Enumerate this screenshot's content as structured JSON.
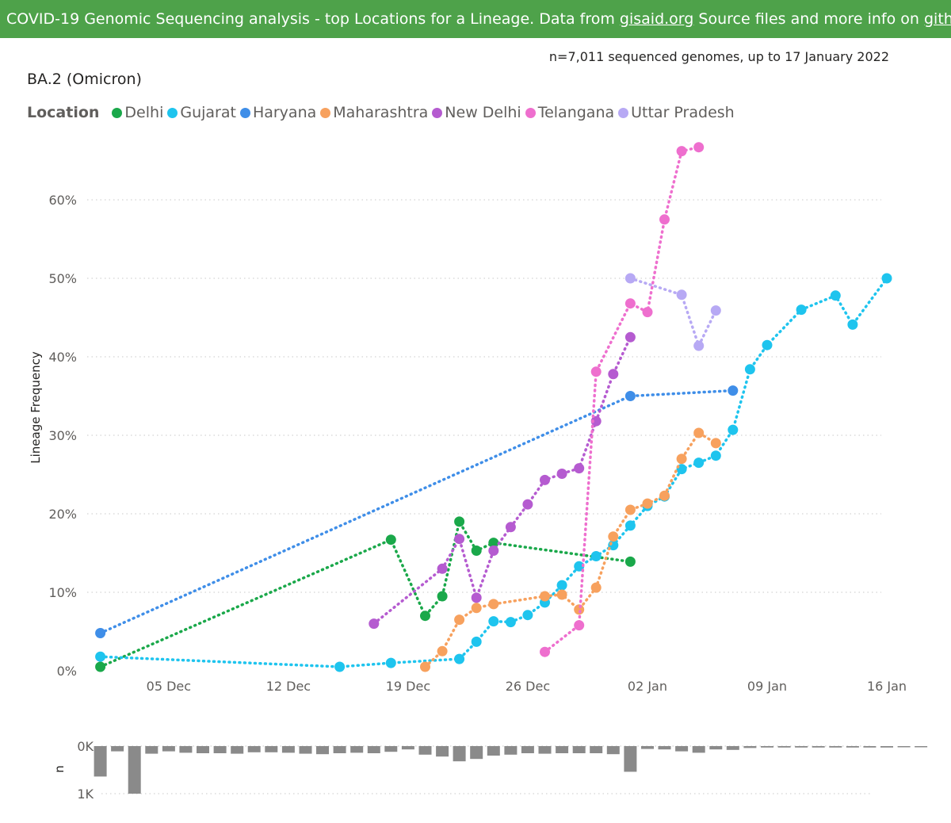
{
  "banner": {
    "text_before": "COVID-19 Genomic Sequencing analysis - top Locations for a Lineage. Data from ",
    "link1": "gisaid.org",
    "text_middle": " Source files and more info on ",
    "link2": "github",
    "text_after": "."
  },
  "subtitle": "n=7,011 sequenced genomes, up to 17 January 2022",
  "chart_data": [
    {
      "type": "line",
      "title": "BA.2 (Omicron)",
      "ylabel": "Lineage Frequency",
      "xlabel": "",
      "legend_title": "Location",
      "legend_position": "top-left",
      "x_axis_type": "date",
      "xlim": [
        "2021-11-30",
        "2022-01-16"
      ],
      "ylim": [
        0,
        0.68
      ],
      "yticks": [
        0,
        0.1,
        0.2,
        0.3,
        0.4,
        0.5,
        0.6
      ],
      "ytick_labels": [
        "0%",
        "10%",
        "20%",
        "30%",
        "40%",
        "50%",
        "60%"
      ],
      "xticks": [
        "2021-12-05",
        "2021-12-12",
        "2021-12-19",
        "2021-12-26",
        "2022-01-02",
        "2022-01-09",
        "2022-01-16"
      ],
      "xtick_labels": [
        "05 Dec",
        "12 Dec",
        "19 Dec",
        "26 Dec",
        "02 Jan",
        "09 Jan",
        "16 Jan"
      ],
      "grid": true,
      "series": [
        {
          "name": "Delhi",
          "color": "#1aa84a",
          "points": [
            [
              "2021-12-01",
              0.005
            ],
            [
              "2021-12-18",
              0.167
            ],
            [
              "2021-12-20",
              0.07
            ],
            [
              "2021-12-21",
              0.095
            ],
            [
              "2021-12-22",
              0.19
            ],
            [
              "2021-12-23",
              0.153
            ],
            [
              "2021-12-24",
              0.163
            ],
            [
              "2022-01-01",
              0.139
            ]
          ]
        },
        {
          "name": "Gujarat",
          "color": "#1ec4ee",
          "points": [
            [
              "2021-12-01",
              0.018
            ],
            [
              "2021-12-15",
              0.005
            ],
            [
              "2021-12-18",
              0.01
            ],
            [
              "2021-12-22",
              0.015
            ],
            [
              "2021-12-23",
              0.037
            ],
            [
              "2021-12-24",
              0.063
            ],
            [
              "2021-12-25",
              0.062
            ],
            [
              "2021-12-26",
              0.071
            ],
            [
              "2021-12-27",
              0.087
            ],
            [
              "2021-12-28",
              0.109
            ],
            [
              "2021-12-29",
              0.133
            ],
            [
              "2021-12-30",
              0.146
            ],
            [
              "2021-12-31",
              0.16
            ],
            [
              "2022-01-01",
              0.185
            ],
            [
              "2022-01-02",
              0.21
            ],
            [
              "2022-01-03",
              0.222
            ],
            [
              "2022-01-04",
              0.257
            ],
            [
              "2022-01-05",
              0.265
            ],
            [
              "2022-01-06",
              0.274
            ],
            [
              "2022-01-07",
              0.307
            ],
            [
              "2022-01-08",
              0.384
            ],
            [
              "2022-01-09",
              0.415
            ],
            [
              "2022-01-11",
              0.46
            ],
            [
              "2022-01-13",
              0.478
            ],
            [
              "2022-01-14",
              0.441
            ],
            [
              "2022-01-16",
              0.5
            ]
          ]
        },
        {
          "name": "Haryana",
          "color": "#3f8ee8",
          "points": [
            [
              "2021-12-01",
              0.048
            ],
            [
              "2022-01-01",
              0.35
            ],
            [
              "2022-01-07",
              0.357
            ]
          ]
        },
        {
          "name": "Maharashtra",
          "color": "#f7a15e",
          "points": [
            [
              "2021-12-20",
              0.005
            ],
            [
              "2021-12-21",
              0.025
            ],
            [
              "2021-12-22",
              0.065
            ],
            [
              "2021-12-23",
              0.08
            ],
            [
              "2021-12-24",
              0.085
            ],
            [
              "2021-12-27",
              0.095
            ],
            [
              "2021-12-28",
              0.097
            ],
            [
              "2021-12-29",
              0.078
            ],
            [
              "2021-12-30",
              0.106
            ],
            [
              "2021-12-31",
              0.171
            ],
            [
              "2022-01-01",
              0.205
            ],
            [
              "2022-01-02",
              0.213
            ],
            [
              "2022-01-03",
              0.223
            ],
            [
              "2022-01-04",
              0.27
            ],
            [
              "2022-01-05",
              0.303
            ],
            [
              "2022-01-06",
              0.29
            ]
          ]
        },
        {
          "name": "New Delhi",
          "color": "#b55bd0",
          "points": [
            [
              "2021-12-17",
              0.06
            ],
            [
              "2021-12-21",
              0.13
            ],
            [
              "2021-12-22",
              0.168
            ],
            [
              "2021-12-23",
              0.093
            ],
            [
              "2021-12-24",
              0.153
            ],
            [
              "2021-12-25",
              0.183
            ],
            [
              "2021-12-26",
              0.212
            ],
            [
              "2021-12-27",
              0.243
            ],
            [
              "2021-12-28",
              0.251
            ],
            [
              "2021-12-29",
              0.258
            ],
            [
              "2021-12-30",
              0.318
            ],
            [
              "2021-12-31",
              0.378
            ],
            [
              "2022-01-01",
              0.425
            ]
          ]
        },
        {
          "name": "Telangana",
          "color": "#ee6fce",
          "points": [
            [
              "2021-12-27",
              0.024
            ],
            [
              "2021-12-29",
              0.058
            ],
            [
              "2021-12-30",
              0.381
            ],
            [
              "2022-01-01",
              0.468
            ],
            [
              "2022-01-02",
              0.457
            ],
            [
              "2022-01-03",
              0.575
            ],
            [
              "2022-01-04",
              0.662
            ],
            [
              "2022-01-05",
              0.667
            ]
          ]
        },
        {
          "name": "Uttar Pradesh",
          "color": "#b7a9f4",
          "points": [
            [
              "2022-01-01",
              0.5
            ],
            [
              "2022-01-04",
              0.479
            ],
            [
              "2022-01-05",
              0.414
            ],
            [
              "2022-01-06",
              0.459
            ]
          ]
        }
      ]
    },
    {
      "type": "bar",
      "ylabel": "n",
      "ylim": [
        0,
        1000
      ],
      "yticks": [
        0,
        1000
      ],
      "ytick_labels": [
        "0K",
        "1K"
      ],
      "orientation": "downward",
      "color": "#8a8a8a",
      "x_start": "2021-12-01",
      "values": [
        640,
        110,
        1000,
        160,
        110,
        140,
        150,
        150,
        160,
        130,
        130,
        140,
        160,
        170,
        150,
        140,
        150,
        120,
        70,
        180,
        220,
        320,
        270,
        200,
        180,
        150,
        160,
        150,
        150,
        150,
        170,
        540,
        60,
        70,
        110,
        140,
        70,
        80,
        40,
        30,
        30,
        30,
        30,
        30,
        30,
        30,
        30,
        10,
        20
      ]
    }
  ]
}
